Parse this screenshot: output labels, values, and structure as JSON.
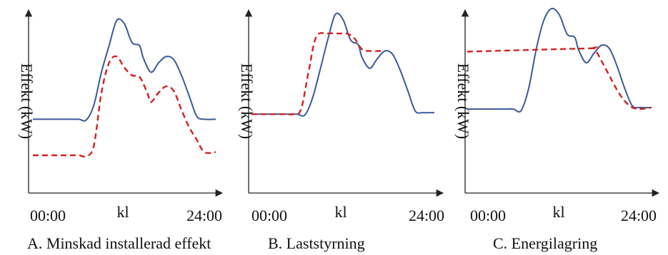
{
  "chart_data": [
    {
      "type": "line",
      "title": "",
      "ylabel": "Effekt (kW)",
      "xlabel": "kl",
      "x_ticks": [
        "00:00",
        "kl",
        "24:00"
      ],
      "caption": "A. Minskad installerad effekt",
      "xlim": [
        0,
        24
      ],
      "ylim": [
        0,
        100
      ],
      "series": [
        {
          "color": "#3a5a9a",
          "style": "solid",
          "x": [
            0,
            3,
            4.5,
            6,
            7,
            8,
            9,
            10,
            11,
            12,
            13,
            14,
            14.5,
            15.5,
            16.5,
            17.5,
            18.5,
            19.5,
            20.5,
            21.5,
            22.5,
            24
          ],
          "y": [
            33,
            33,
            33,
            33,
            32.5,
            42,
            63,
            80,
            96,
            94,
            82,
            80,
            72,
            63,
            69,
            73,
            71,
            61,
            48,
            35,
            33,
            33
          ]
        },
        {
          "color": "#d42020",
          "style": "dashed",
          "x": [
            0,
            3,
            5,
            6,
            7,
            8,
            9,
            10,
            11,
            12,
            13,
            14,
            15,
            15.5,
            16.5,
            17.5,
            18.5,
            19.5,
            20.5,
            21.5,
            22.5,
            24
          ],
          "y": [
            10,
            10,
            10,
            10,
            9.5,
            16,
            50,
            69,
            73,
            66,
            61,
            60,
            50,
            44,
            50,
            54,
            51,
            39,
            28,
            20,
            12,
            12
          ]
        }
      ]
    },
    {
      "type": "line",
      "title": "",
      "ylabel": "Effekt (kW)",
      "xlabel": "kl",
      "x_ticks": [
        "00:00",
        "kl",
        "24:00"
      ],
      "caption": "B. Laststyrning",
      "xlim": [
        0,
        24
      ],
      "ylim": [
        0,
        100
      ],
      "series": [
        {
          "color": "#3a5a9a",
          "style": "solid",
          "x": [
            0,
            3,
            5,
            6,
            7,
            8,
            9,
            10,
            11,
            12,
            13,
            14,
            14.5,
            15.5,
            16.5,
            17.5,
            18.5,
            19.5,
            20.5,
            21.5,
            22.5,
            24
          ],
          "y": [
            35,
            35,
            35,
            35,
            34.5,
            45,
            63,
            82,
            98,
            95,
            82,
            79,
            71,
            64,
            70,
            75,
            73,
            63,
            50,
            37,
            36,
            36
          ]
        },
        {
          "color": "#d42020",
          "style": "dashed",
          "x": [
            0,
            3,
            4.5,
            5.5,
            6.5,
            7.5,
            8.5,
            10,
            11.5,
            12.5,
            13.5,
            14.5,
            15.5,
            17
          ],
          "y": [
            35,
            35,
            35,
            35,
            38,
            62,
            84,
            86,
            86,
            86,
            83,
            76,
            75,
            75
          ]
        }
      ]
    },
    {
      "type": "line",
      "title": "",
      "ylabel": "Effekt (kW)",
      "xlabel": "kl",
      "x_ticks": [
        "00:00",
        "kl",
        "24:00"
      ],
      "caption": "C. Energilagring",
      "xlim": [
        0,
        24
      ],
      "ylim": [
        0,
        100
      ],
      "series": [
        {
          "color": "#3a5a9a",
          "style": "solid",
          "x": [
            0,
            3,
            5,
            6,
            7,
            8,
            9,
            10,
            11,
            12,
            13,
            14,
            14.5,
            15.5,
            16.5,
            17.5,
            18.5,
            19.5,
            20.5,
            21.5,
            22.5,
            24
          ],
          "y": [
            37,
            37,
            37,
            37,
            36,
            50,
            75,
            93,
            100,
            96,
            84,
            82,
            74,
            66,
            72,
            77,
            75,
            64,
            50,
            39,
            38,
            38
          ]
        },
        {
          "color": "#d42020",
          "style": "dashed",
          "x": [
            0,
            15.5,
            16.5,
            17.5,
            18.5,
            19.5,
            20.5,
            21.5,
            22.5,
            24
          ],
          "y": [
            73,
            75,
            75,
            67,
            58,
            49,
            42,
            38,
            37,
            38
          ]
        }
      ]
    }
  ]
}
